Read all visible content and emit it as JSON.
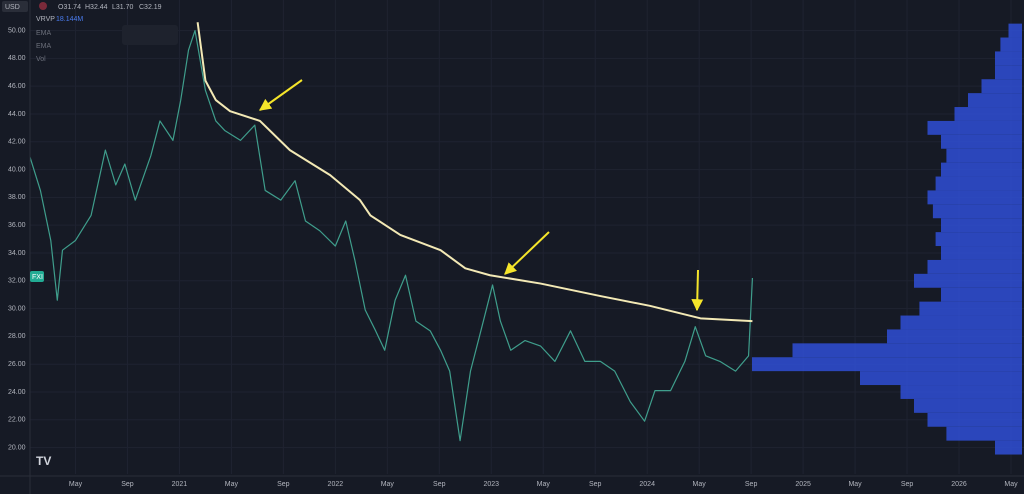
{
  "header": {
    "currency": "USD",
    "ohlc": [
      "O31.74",
      "H32.44",
      "L31.70",
      "C32.19"
    ],
    "indicator": "VRVP",
    "indicator_value": "18.144M",
    "studies": [
      "EMA",
      "EMA",
      "Vol"
    ],
    "symbol_tag": "FXI"
  },
  "chart_data": {
    "type": "line",
    "grid": true,
    "xlim": [
      0.5,
      77
    ],
    "ylim": [
      18.1,
      52.2
    ],
    "xticks": [
      {
        "value": 4,
        "label": "May"
      },
      {
        "value": 8,
        "label": "Sep"
      },
      {
        "value": 12,
        "label": "2021"
      },
      {
        "value": 16,
        "label": "May"
      },
      {
        "value": 20,
        "label": "Sep"
      },
      {
        "value": 24,
        "label": "2022"
      },
      {
        "value": 28,
        "label": "May"
      },
      {
        "value": 32,
        "label": "Sep"
      },
      {
        "value": 36,
        "label": "2023"
      },
      {
        "value": 40,
        "label": "May"
      },
      {
        "value": 44,
        "label": "Sep"
      },
      {
        "value": 48,
        "label": "2024"
      },
      {
        "value": 52,
        "label": "May"
      },
      {
        "value": 56,
        "label": "Sep"
      },
      {
        "value": 60,
        "label": "2025"
      },
      {
        "value": 64,
        "label": "May"
      },
      {
        "value": 68,
        "label": "Sep"
      },
      {
        "value": 72,
        "label": "2026"
      },
      {
        "value": 76,
        "label": "May"
      }
    ],
    "yticks": [
      {
        "value": 20,
        "label": "20.00"
      },
      {
        "value": 22,
        "label": "22.00"
      },
      {
        "value": 24,
        "label": "24.00"
      },
      {
        "value": 26,
        "label": "26.00"
      },
      {
        "value": 28,
        "label": "28.00"
      },
      {
        "value": 30,
        "label": "30.00"
      },
      {
        "value": 32,
        "label": "32.00"
      },
      {
        "value": 34,
        "label": "34.00"
      },
      {
        "value": 36,
        "label": "36.00"
      },
      {
        "value": 38,
        "label": "38.00"
      },
      {
        "value": 40,
        "label": "40.00"
      },
      {
        "value": 42,
        "label": "42.00"
      },
      {
        "value": 44,
        "label": "44.00"
      },
      {
        "value": 46,
        "label": "46.00"
      },
      {
        "value": 48,
        "label": "48.00"
      },
      {
        "value": 50,
        "label": "50.00"
      }
    ],
    "series": [
      {
        "color": "#3f9e8c",
        "x": [
          0.5,
          1.3,
          2.1,
          2.6,
          3.0,
          4.0,
          5.2,
          6.3,
          7.1,
          7.8,
          8.6,
          9.8,
          10.5,
          11.5,
          12.1,
          12.7,
          13.2,
          14.0,
          14.8,
          15.5,
          16.7,
          17.8,
          18.6,
          19.8,
          20.9,
          21.7,
          22.8,
          24.0,
          24.8,
          25.5,
          26.3,
          27.1,
          27.8,
          28.6,
          29.4,
          30.2,
          31.3,
          32.1,
          32.8,
          33.6,
          34.4,
          35.2,
          36.1,
          36.7,
          37.5,
          38.6,
          39.8,
          40.9,
          42.1,
          43.2,
          44.4,
          45.5,
          46.7,
          47.8,
          48.6,
          49.8,
          50.9,
          51.7,
          52.5,
          53.6,
          54.8,
          55.8,
          56.1
        ],
        "values": [
          40.9,
          38.5,
          34.9,
          30.6,
          34.2,
          34.9,
          36.7,
          41.4,
          38.9,
          40.4,
          37.8,
          41.0,
          43.5,
          42.1,
          45.0,
          48.6,
          50.0,
          45.7,
          43.5,
          42.8,
          42.1,
          43.2,
          38.5,
          37.8,
          39.2,
          36.3,
          35.6,
          34.5,
          36.3,
          33.5,
          29.9,
          28.4,
          27.0,
          30.6,
          32.4,
          29.1,
          28.4,
          27.0,
          25.5,
          20.5,
          25.5,
          28.4,
          31.7,
          29.1,
          27.0,
          27.7,
          27.3,
          26.2,
          28.4,
          26.2,
          26.2,
          25.5,
          23.3,
          21.9,
          24.1,
          24.1,
          26.2,
          28.7,
          26.6,
          26.2,
          25.5,
          26.6,
          32.2
        ]
      },
      {
        "color": "#f3e9b5",
        "x": [
          13.4,
          14.0,
          14.8,
          15.9,
          18.2,
          20.5,
          23.6,
          25.9,
          26.7,
          29.0,
          32.1,
          34.0,
          35.9,
          39.8,
          44.4,
          48.2,
          52.1,
          56.1
        ],
        "values": [
          50.6,
          46.4,
          45.0,
          44.2,
          43.5,
          41.4,
          39.6,
          37.8,
          36.7,
          35.3,
          34.2,
          32.9,
          32.4,
          31.8,
          30.9,
          30.2,
          29.3,
          29.1
        ]
      }
    ],
    "profile": {
      "color": "#2f4fd6",
      "prices": [
        20,
        21,
        22,
        23,
        24,
        25,
        26,
        27,
        28,
        29,
        30,
        31,
        32,
        33,
        34,
        35,
        36,
        37,
        38,
        39,
        40,
        41,
        42,
        43,
        44,
        45,
        46,
        47,
        48,
        49,
        50
      ],
      "values": [
        10,
        28,
        35,
        40,
        45,
        60,
        100,
        85,
        50,
        45,
        38,
        30,
        40,
        35,
        30,
        32,
        30,
        33,
        35,
        32,
        30,
        28,
        30,
        35,
        25,
        20,
        15,
        10,
        10,
        8,
        5
      ]
    }
  }
}
